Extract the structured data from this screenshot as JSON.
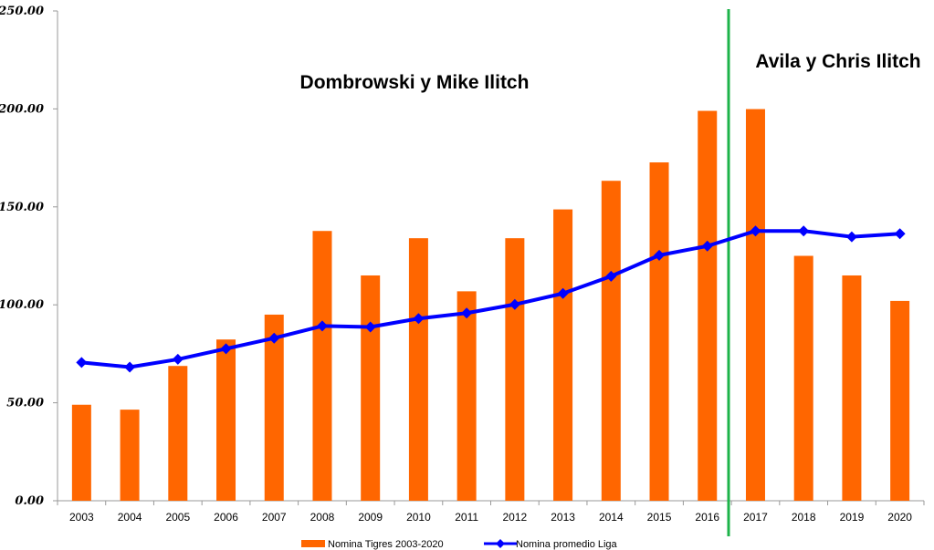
{
  "chart_data": {
    "type": "bar",
    "title": "",
    "xlabel": "",
    "ylabel": "",
    "ylim": [
      0,
      250
    ],
    "yticks": [
      "0.00",
      "50.00",
      "100.00",
      "150.00",
      "200.00",
      "250.00"
    ],
    "categories": [
      "2003",
      "2004",
      "2005",
      "2006",
      "2007",
      "2008",
      "2009",
      "2010",
      "2011",
      "2012",
      "2013",
      "2014",
      "2015",
      "2016",
      "2017",
      "2018",
      "2019",
      "2020"
    ],
    "series": [
      {
        "name": "Nomina Tigres 2003-2020",
        "type": "bar",
        "color": "#ff6600",
        "values": [
          49,
          46.5,
          68.8,
          82.3,
          95,
          137.7,
          115,
          134,
          106.9,
          134,
          148.7,
          163.3,
          172.7,
          199,
          199.9,
          125,
          115,
          102
        ]
      },
      {
        "name": "Nomina promedio Liga",
        "type": "line",
        "color": "#0000ff",
        "values": [
          70.6,
          68.2,
          72.2,
          77.6,
          83,
          89.2,
          88.7,
          93,
          95.8,
          100.2,
          105.8,
          114.6,
          125.3,
          130,
          137.7,
          137.7,
          134.7,
          136.3
        ]
      }
    ],
    "annotations": [
      {
        "text": "Dombrowski y Mike Ilitch",
        "position": "upper-left-center"
      },
      {
        "text": "Avila y Chris Ilitch",
        "position": "upper-right"
      }
    ],
    "divider": {
      "after_category": "2016",
      "color": "#1db34a"
    },
    "legend_position": "bottom"
  }
}
